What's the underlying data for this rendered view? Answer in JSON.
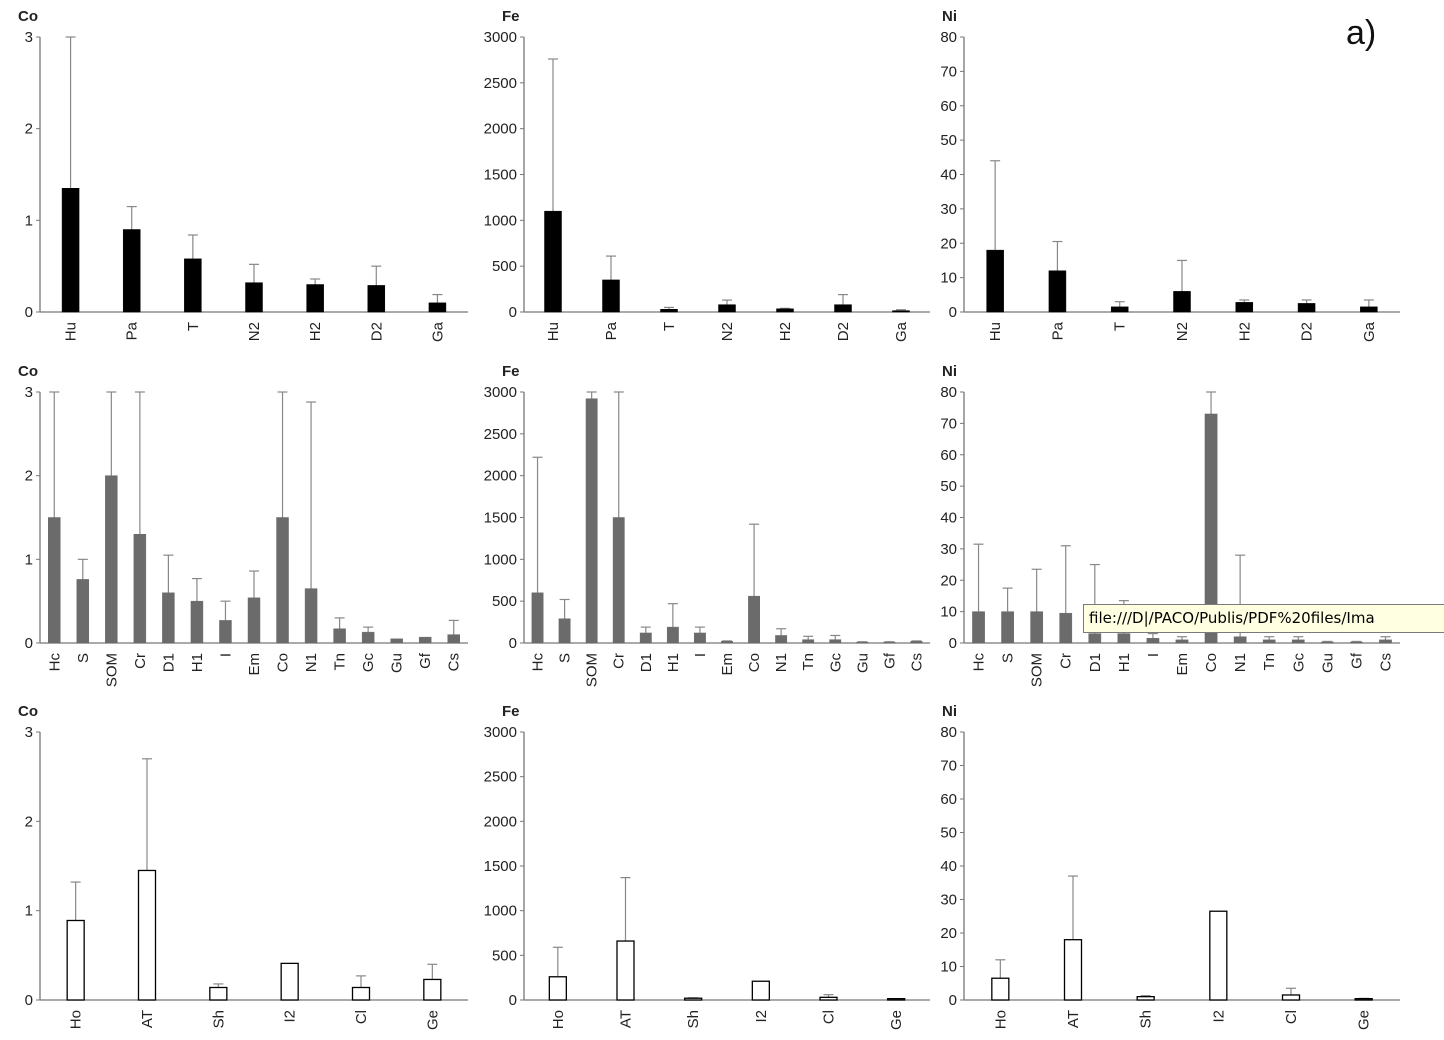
{
  "label": "a)",
  "tooltip": "file:///D|/PACO/Publis/PDF%20files/Ima",
  "chart_data": [
    {
      "type": "bar",
      "row": 1,
      "col": 1,
      "title": "Co",
      "ylim": [
        0,
        3
      ],
      "yticks": [
        0,
        1,
        2,
        3
      ],
      "bar_color": "#000000",
      "categories": [
        "Hu",
        "Pa",
        "T",
        "N2",
        "H2",
        "D2",
        "Ga"
      ],
      "values": [
        1.35,
        0.9,
        0.58,
        0.32,
        0.3,
        0.29,
        0.1
      ],
      "error": [
        3.0,
        1.15,
        0.84,
        0.52,
        0.36,
        0.5,
        0.19
      ]
    },
    {
      "type": "bar",
      "row": 1,
      "col": 2,
      "title": "Fe",
      "ylim": [
        0,
        3000
      ],
      "yticks": [
        0,
        500,
        1000,
        1500,
        2000,
        2500,
        3000
      ],
      "bar_color": "#000000",
      "categories": [
        "Hu",
        "Pa",
        "T",
        "N2",
        "H2",
        "D2",
        "Ga"
      ],
      "values": [
        1100,
        350,
        30,
        80,
        35,
        80,
        15
      ],
      "error": [
        2760,
        610,
        50,
        130,
        40,
        190,
        25
      ]
    },
    {
      "type": "bar",
      "row": 1,
      "col": 3,
      "title": "Ni",
      "ylim": [
        0,
        80
      ],
      "yticks": [
        0,
        10,
        20,
        30,
        40,
        50,
        60,
        70,
        80
      ],
      "bar_color": "#000000",
      "categories": [
        "Hu",
        "Pa",
        "T",
        "N2",
        "H2",
        "D2",
        "Ga"
      ],
      "values": [
        18,
        12,
        1.5,
        6,
        2.8,
        2.5,
        1.5
      ],
      "error": [
        44,
        20.5,
        3,
        15,
        3.5,
        3.5,
        3.5
      ]
    },
    {
      "type": "bar",
      "row": 2,
      "col": 1,
      "title": "Co",
      "ylim": [
        0,
        3
      ],
      "yticks": [
        0,
        1,
        2,
        3
      ],
      "bar_color": "#6b6b6b",
      "categories": [
        "Hc",
        "S",
        "SOM",
        "Cr",
        "D1",
        "H1",
        "I",
        "Em",
        "Co",
        "N1",
        "Tn",
        "Gc",
        "Gu",
        "Gf",
        "Cs"
      ],
      "values": [
        1.5,
        0.76,
        2.0,
        1.3,
        0.6,
        0.5,
        0.27,
        0.54,
        1.5,
        0.65,
        0.17,
        0.13,
        0.05,
        0.07,
        0.1
      ],
      "error": [
        3.0,
        1.0,
        3.0,
        3.0,
        1.05,
        0.77,
        0.5,
        0.86,
        3.0,
        2.88,
        0.3,
        0.19,
        0.05,
        0.07,
        0.27
      ]
    },
    {
      "type": "bar",
      "row": 2,
      "col": 2,
      "title": "Fe",
      "ylim": [
        0,
        3000
      ],
      "yticks": [
        0,
        500,
        1000,
        1500,
        2000,
        2500,
        3000
      ],
      "bar_color": "#6b6b6b",
      "categories": [
        "Hc",
        "S",
        "SOM",
        "Cr",
        "D1",
        "H1",
        "I",
        "Em",
        "Co",
        "N1",
        "Tn",
        "Gc",
        "Gu",
        "Gf",
        "Cs"
      ],
      "values": [
        600,
        290,
        2920,
        1500,
        120,
        190,
        120,
        20,
        560,
        90,
        40,
        40,
        10,
        10,
        20
      ],
      "error": [
        2220,
        520,
        3000,
        3000,
        190,
        470,
        190,
        25,
        1420,
        170,
        80,
        90,
        15,
        15,
        25
      ]
    },
    {
      "type": "bar",
      "row": 2,
      "col": 3,
      "title": "Ni",
      "ylim": [
        0,
        80
      ],
      "yticks": [
        0,
        10,
        20,
        30,
        40,
        50,
        60,
        70,
        80
      ],
      "bar_color": "#6b6b6b",
      "categories": [
        "Hc",
        "S",
        "SOM",
        "Cr",
        "D1",
        "H1",
        "I",
        "Em",
        "Co",
        "N1",
        "Tn",
        "Gc",
        "Gu",
        "Gf",
        "Cs"
      ],
      "values": [
        10,
        10,
        10,
        9.5,
        3,
        3,
        1.5,
        1,
        73,
        2,
        1,
        1,
        0.3,
        0.3,
        1
      ],
      "error": [
        31.5,
        17.5,
        23.5,
        31,
        25,
        13.5,
        3,
        2,
        80,
        28,
        2,
        2,
        0.5,
        0.5,
        2
      ]
    },
    {
      "type": "bar",
      "row": 3,
      "col": 1,
      "title": "Co",
      "ylim": [
        0,
        3
      ],
      "yticks": [
        0,
        1,
        2,
        3
      ],
      "bar_color": "#ffffff",
      "categories": [
        "Ho",
        "AT",
        "Sh",
        "I2",
        "Cl",
        "Ge"
      ],
      "values": [
        0.89,
        1.45,
        0.14,
        0.41,
        0.14,
        0.23
      ],
      "error": [
        1.32,
        2.7,
        0.18,
        0.41,
        0.27,
        0.4
      ]
    },
    {
      "type": "bar",
      "row": 3,
      "col": 2,
      "title": "Fe",
      "ylim": [
        0,
        3000
      ],
      "yticks": [
        0,
        500,
        1000,
        1500,
        2000,
        2500,
        3000
      ],
      "bar_color": "#ffffff",
      "categories": [
        "Ho",
        "AT",
        "Sh",
        "I2",
        "Cl",
        "Ge"
      ],
      "values": [
        260,
        660,
        20,
        210,
        30,
        15
      ],
      "error": [
        590,
        1370,
        25,
        210,
        60,
        15
      ]
    },
    {
      "type": "bar",
      "row": 3,
      "col": 3,
      "title": "Ni",
      "ylim": [
        0,
        80
      ],
      "yticks": [
        0,
        10,
        20,
        30,
        40,
        50,
        60,
        70,
        80
      ],
      "bar_color": "#ffffff",
      "categories": [
        "Ho",
        "AT",
        "Sh",
        "I2",
        "Cl",
        "Ge"
      ],
      "values": [
        6.5,
        18,
        1,
        26.5,
        1.5,
        0.4
      ],
      "error": [
        12,
        37,
        1.3,
        26.5,
        3.5,
        0.5
      ]
    }
  ]
}
